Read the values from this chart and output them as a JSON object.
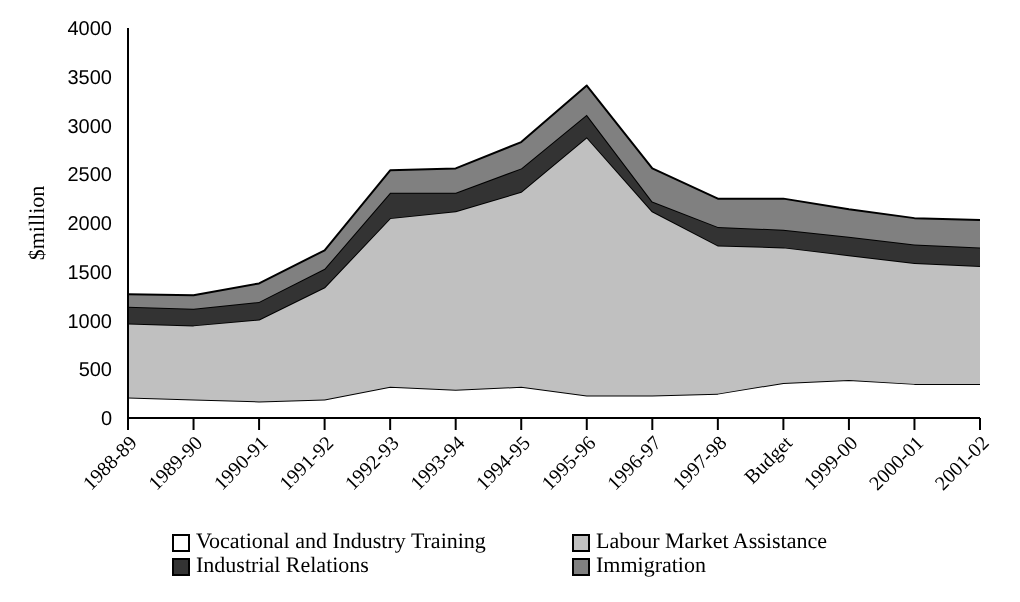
{
  "chart_data": {
    "type": "area",
    "stacked": true,
    "ylabel": "$million",
    "categories": [
      "1988-89",
      "1989-90",
      "1990-91",
      "1991-92",
      "1992-93",
      "1993-94",
      "1994-95",
      "1995-96",
      "1996-97",
      "1997-98",
      "Budget",
      "1999-00",
      "2000-01",
      "2001-02"
    ],
    "series": [
      {
        "name": "Vocational and Industry Training",
        "color": "#ffffff",
        "values": [
          210,
          190,
          170,
          190,
          320,
          290,
          320,
          230,
          230,
          250,
          360,
          390,
          350,
          350
        ]
      },
      {
        "name": "Labour Market Assistance",
        "color": "#c0c0c0",
        "values": [
          760,
          760,
          840,
          1150,
          1730,
          1830,
          2000,
          2650,
          1890,
          1520,
          1390,
          1280,
          1240,
          1210
        ]
      },
      {
        "name": "Industrial Relations",
        "color": "#333333",
        "values": [
          170,
          170,
          180,
          190,
          260,
          190,
          240,
          230,
          100,
          190,
          180,
          190,
          190,
          190
        ]
      },
      {
        "name": "Immigration",
        "color": "#808080",
        "values": [
          130,
          140,
          190,
          190,
          230,
          250,
          270,
          300,
          340,
          290,
          320,
          280,
          270,
          280
        ]
      }
    ],
    "ylim": [
      0,
      4000
    ],
    "yticks": [
      0,
      500,
      1000,
      1500,
      2000,
      2500,
      3000,
      3500,
      4000
    ],
    "legend": "bottom"
  }
}
